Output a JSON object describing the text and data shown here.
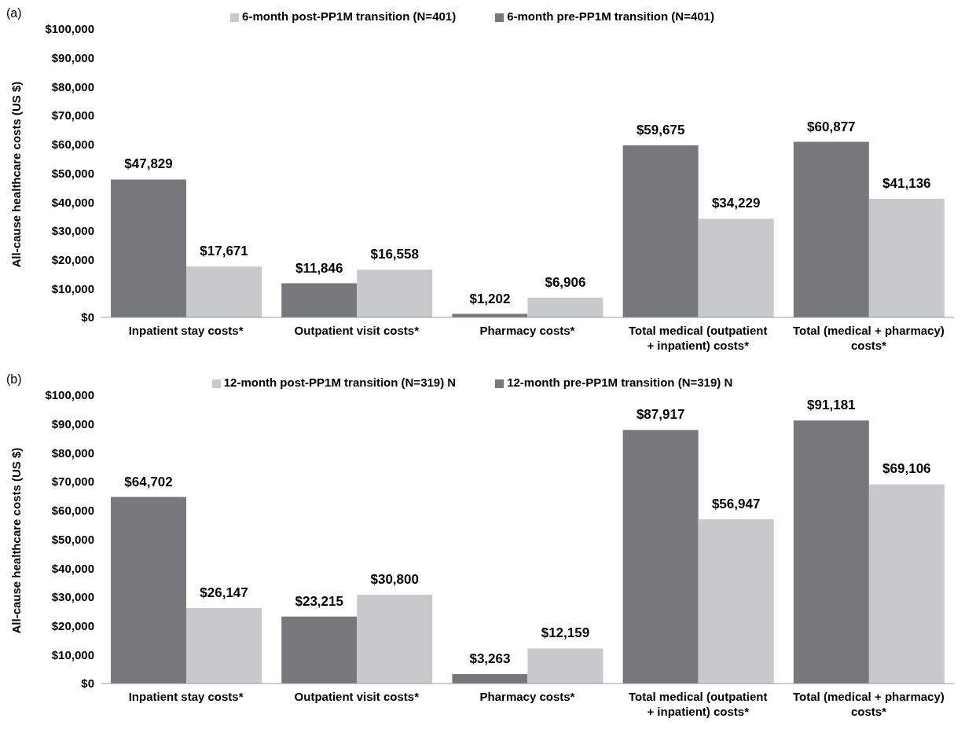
{
  "chart_data": [
    {
      "type": "bar",
      "title": "(a)",
      "ylabel": "All-cause healthcare costs (US $)",
      "categories": [
        "Inpatient stay costs*",
        "Outpatient visit costs*",
        "Pharmacy costs*",
        "Total medical (outpatient + inpatient) costs*",
        "Total (medical + pharmacy) costs*"
      ],
      "series": [
        {
          "name": "6-month pre-PP1M transition (N=401)",
          "color": "#77787b",
          "values": [
            47829,
            11846,
            1202,
            59675,
            60877
          ],
          "value_labels": [
            "$47,829",
            "$11,846",
            "$1,202",
            "$59,675",
            "$60,877"
          ]
        },
        {
          "name": "6-month post-PP1M transition (N=401)",
          "color": "#c8c9cb",
          "values": [
            17671,
            16558,
            6906,
            34229,
            41136
          ],
          "value_labels": [
            "$17,671",
            "$16,558",
            "$6,906",
            "$34,229",
            "$41,136"
          ]
        }
      ],
      "ylim": [
        0,
        100000
      ],
      "yticks": [
        {
          "value": 0,
          "label": "$0"
        },
        {
          "value": 10000,
          "label": "$10,000"
        },
        {
          "value": 20000,
          "label": "$20,000"
        },
        {
          "value": 30000,
          "label": "$30,000"
        },
        {
          "value": 40000,
          "label": "$40,000"
        },
        {
          "value": 50000,
          "label": "$50,000"
        },
        {
          "value": 60000,
          "label": "$60,000"
        },
        {
          "value": 70000,
          "label": "$70,000"
        },
        {
          "value": 80000,
          "label": "$80,000"
        },
        {
          "value": 90000,
          "label": "$90,000"
        },
        {
          "value": 100000,
          "label": "$100,000"
        }
      ],
      "legend": "top"
    },
    {
      "type": "bar",
      "title": "(b)",
      "ylabel": "All-cause healthcare costs (US $)",
      "categories": [
        "Inpatient stay costs*",
        "Outpatient visit costs*",
        "Pharmacy costs*",
        "Total medical (outpatient + inpatient) costs*",
        "Total (medical + pharmacy) costs*"
      ],
      "series": [
        {
          "name": "12-month pre-PP1M transition (N=319) N",
          "color": "#77787b",
          "values": [
            64702,
            23215,
            3263,
            87917,
            91181
          ],
          "value_labels": [
            "$64,702",
            "$23,215",
            "$3,263",
            "$87,917",
            "$91,181"
          ]
        },
        {
          "name": "12-month post-PP1M transition (N=319) N",
          "color": "#c8c9cb",
          "values": [
            26147,
            30800,
            12159,
            56947,
            69106
          ],
          "value_labels": [
            "$26,147",
            "$30,800",
            "$12,159",
            "$56,947",
            "$69,106"
          ]
        }
      ],
      "ylim": [
        0,
        100000
      ],
      "yticks": [
        {
          "value": 0,
          "label": "$0"
        },
        {
          "value": 10000,
          "label": "$10,000"
        },
        {
          "value": 20000,
          "label": "$20,000"
        },
        {
          "value": 30000,
          "label": "$30,000"
        },
        {
          "value": 40000,
          "label": "$40,000"
        },
        {
          "value": 50000,
          "label": "$50,000"
        },
        {
          "value": 60000,
          "label": "$60,000"
        },
        {
          "value": 70000,
          "label": "$70,000"
        },
        {
          "value": 80000,
          "label": "$80,000"
        },
        {
          "value": 90000,
          "label": "$90,000"
        },
        {
          "value": 100000,
          "label": "$100,000"
        }
      ],
      "legend": "top"
    }
  ]
}
